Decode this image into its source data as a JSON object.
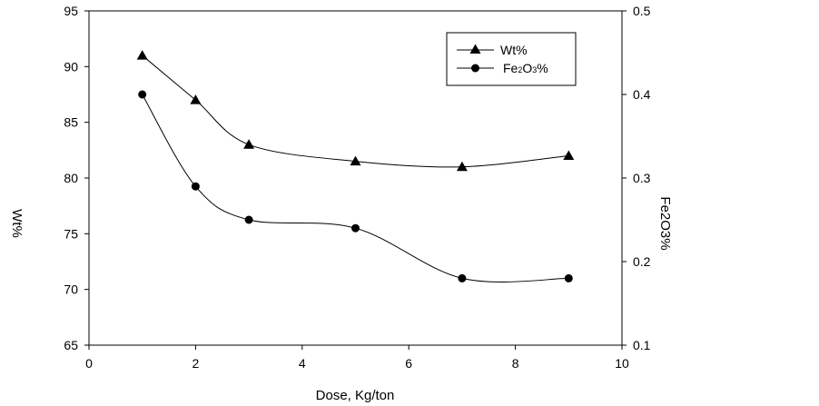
{
  "chart_data": {
    "type": "line",
    "xlabel": "Dose, Kg/ton",
    "ylabel": "Wt%",
    "y2label": "Fe2O3%",
    "xlim": [
      0,
      10
    ],
    "ylim": [
      65,
      95
    ],
    "y2lim": [
      0.1,
      0.5
    ],
    "xticks": [
      "0",
      "2",
      "4",
      "6",
      "8",
      "10"
    ],
    "yticks": [
      "65",
      "70",
      "75",
      "80",
      "85",
      "90",
      "95"
    ],
    "y2ticks": [
      "0.1",
      "0.2",
      "0.3",
      "0.4",
      "0.5"
    ],
    "grid": false,
    "legend_position": "top-right",
    "series": [
      {
        "name": "Wt%",
        "axis": "left",
        "marker": "triangle",
        "color": "#000000",
        "x": [
          1,
          2,
          3,
          5,
          7,
          9
        ],
        "values": [
          91,
          87,
          83,
          81.5,
          81,
          82
        ]
      },
      {
        "name": "Fe2O3%",
        "axis": "right",
        "marker": "circle",
        "color": "#000000",
        "x": [
          1,
          2,
          3,
          5,
          7,
          9
        ],
        "values": [
          0.4,
          0.29,
          0.25,
          0.24,
          0.18,
          0.18
        ]
      }
    ]
  }
}
